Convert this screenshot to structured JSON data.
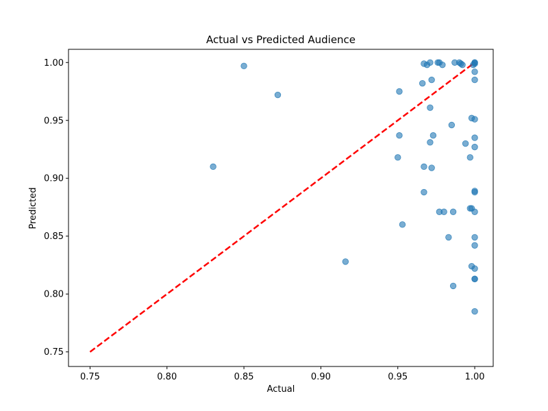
{
  "chart_data": {
    "type": "scatter",
    "title": "Actual vs Predicted Audience",
    "xlabel": "Actual",
    "ylabel": "Predicted",
    "xlim": [
      0.736,
      1.012
    ],
    "ylim": [
      0.7374,
      1.0114
    ],
    "x_ticks": [
      0.75,
      0.8,
      0.85,
      0.9,
      0.95,
      1.0
    ],
    "x_tick_labels": [
      "0.75",
      "0.80",
      "0.85",
      "0.90",
      "0.95",
      "1.00"
    ],
    "y_ticks": [
      0.75,
      0.8,
      0.85,
      0.9,
      0.95,
      1.0
    ],
    "y_tick_labels": [
      "0.75",
      "0.80",
      "0.85",
      "0.90",
      "0.95",
      "1.00"
    ],
    "grid": false,
    "point_color": "#1f77b4",
    "point_opacity": 0.6,
    "reference_line": {
      "x": [
        0.75,
        1.0
      ],
      "y": [
        0.75,
        1.0
      ],
      "color": "#ff0000",
      "style": "dashed"
    },
    "x": [
      0.85,
      0.872,
      0.83,
      0.916,
      0.951,
      0.951,
      0.95,
      0.953,
      0.966,
      0.967,
      0.969,
      0.971,
      0.971,
      0.971,
      0.972,
      0.972,
      0.967,
      0.967,
      0.973,
      0.976,
      0.977,
      0.977,
      0.979,
      0.98,
      0.983,
      0.985,
      0.986,
      0.986,
      0.987,
      0.99,
      0.991,
      0.992,
      0.994,
      0.997,
      0.997,
      0.998,
      0.998,
      0.998,
      0.999,
      1.0,
      1.0,
      1.0,
      1.0,
      1.0,
      1.0,
      1.0,
      1.0,
      1.0,
      1.0,
      1.0,
      1.0,
      1.0,
      1.0,
      1.0,
      1.0,
      1.0
    ],
    "y": [
      0.997,
      0.972,
      0.91,
      0.828,
      0.975,
      0.937,
      0.918,
      0.86,
      0.982,
      0.999,
      0.998,
      1.0,
      0.961,
      0.931,
      0.985,
      0.909,
      0.91,
      0.888,
      0.937,
      1.0,
      1.0,
      0.871,
      0.998,
      0.871,
      0.849,
      0.946,
      0.871,
      0.807,
      1.0,
      1.0,
      0.999,
      0.998,
      0.93,
      0.918,
      0.874,
      0.824,
      0.952,
      0.874,
      0.998,
      1.0,
      0.999,
      0.992,
      0.985,
      0.951,
      0.935,
      0.927,
      0.889,
      0.888,
      0.871,
      0.849,
      0.842,
      0.822,
      0.813,
      0.813,
      0.785,
      1.0
    ]
  }
}
